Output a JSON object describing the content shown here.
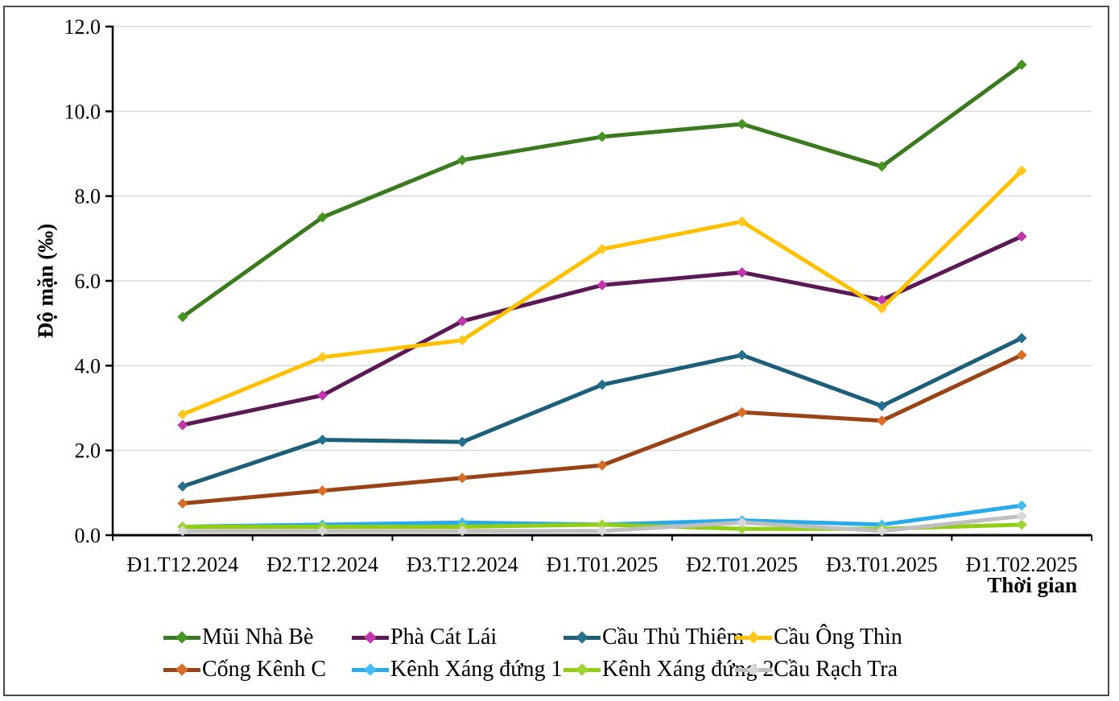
{
  "figure": {
    "background": "#ffffff",
    "border_color": "#4a4a4a"
  },
  "chart_data": {
    "type": "line",
    "title": "",
    "xlabel": "Thời gian",
    "ylabel": "Độ mặn (‰)",
    "ylim": [
      0,
      12
    ],
    "ytick_step": 2,
    "ytick_labels": [
      "0.0",
      "2.0",
      "4.0",
      "6.0",
      "8.0",
      "10.0",
      "12.0"
    ],
    "grid": true,
    "grid_color": "#D9D9D9",
    "axis_color": "#000000",
    "legend_position": "bottom",
    "legend_row_break": 4,
    "categories": [
      "Đ1.T12.2024",
      "Đ2.T12.2024",
      "Đ3.T12.2024",
      "Đ1.T01.2025",
      "Đ2.T01.2025",
      "Đ3.T01.2025",
      "Đ1.T02.2025"
    ],
    "series": [
      {
        "name": "Mũi Nhà Bè",
        "line_color": "#3B7A1E",
        "marker_color": "#44941F",
        "values": [
          5.15,
          7.5,
          8.85,
          9.4,
          9.7,
          8.7,
          11.1
        ]
      },
      {
        "name": "Phà Cát Lái",
        "line_color": "#5B1A55",
        "marker_color": "#C136AD",
        "values": [
          2.6,
          3.3,
          5.05,
          5.9,
          6.2,
          5.55,
          7.05
        ]
      },
      {
        "name": "Cầu Thủ Thiêm",
        "line_color": "#1D5E78",
        "marker_color": "#24708F",
        "values": [
          1.15,
          2.25,
          2.2,
          3.55,
          4.25,
          3.05,
          4.65
        ]
      },
      {
        "name": "Cầu Ông Thìn",
        "line_color": "#FFC000",
        "marker_color": "#FFC81F",
        "values": [
          2.85,
          4.2,
          4.6,
          6.75,
          7.4,
          5.35,
          8.6
        ]
      },
      {
        "name": "Cống Kênh C",
        "line_color": "#9A4317",
        "marker_color": "#D96C27",
        "values": [
          0.75,
          1.05,
          1.35,
          1.65,
          2.9,
          2.7,
          4.25
        ]
      },
      {
        "name": "Kênh Xáng đứng 1",
        "line_color": "#29ABE9",
        "marker_color": "#45BCF2",
        "values": [
          0.2,
          0.25,
          0.3,
          0.25,
          0.35,
          0.25,
          0.7
        ]
      },
      {
        "name": "Kênh Xáng đứng 2",
        "line_color": "#8FCE13",
        "marker_color": "#9ED42F",
        "values": [
          0.2,
          0.2,
          0.2,
          0.25,
          0.15,
          0.15,
          0.25
        ]
      },
      {
        "name": "Cầu Rạch Tra",
        "line_color": "#BFBFBF",
        "marker_color": "#D8D8D8",
        "values": [
          0.1,
          0.1,
          0.1,
          0.1,
          0.3,
          0.1,
          0.45
        ]
      }
    ]
  }
}
